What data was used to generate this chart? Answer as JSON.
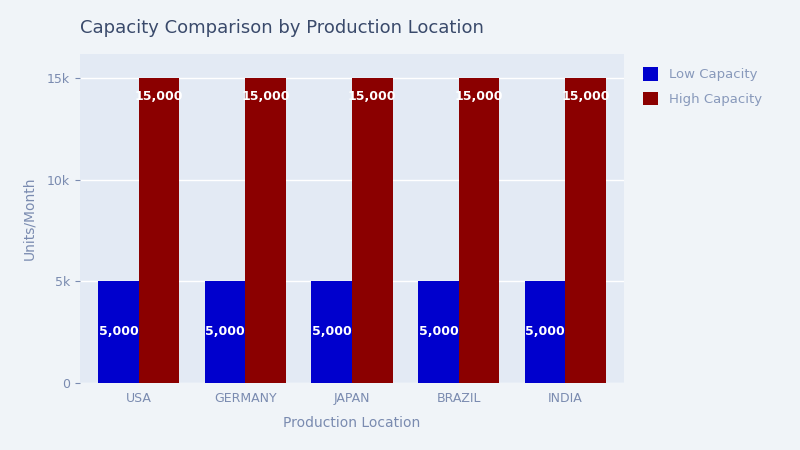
{
  "title": "Capacity Comparison by Production Location",
  "locations": [
    "USA",
    "GERMANY",
    "JAPAN",
    "BRAZIL",
    "INDIA"
  ],
  "low_capacity": [
    5000,
    5000,
    5000,
    5000,
    5000
  ],
  "high_capacity": [
    15000,
    15000,
    15000,
    15000,
    15000
  ],
  "low_color": "#0000CD",
  "high_color": "#8B0000",
  "low_label": "Low Capacity",
  "high_label": "High Capacity",
  "xlabel": "Production Location",
  "ylabel": "Units/Month",
  "ylim": [
    0,
    16200
  ],
  "background_color": "#E3EAF4",
  "figure_background": "#F0F4F8",
  "bar_width": 0.38,
  "title_color": "#3A4A6B",
  "label_color": "#7A8BB0",
  "tick_color": "#7A8BB0",
  "legend_text_color": "#8899BB",
  "title_fontsize": 13,
  "axis_fontsize": 10,
  "tick_fontsize": 9,
  "label_fontsize": 9
}
